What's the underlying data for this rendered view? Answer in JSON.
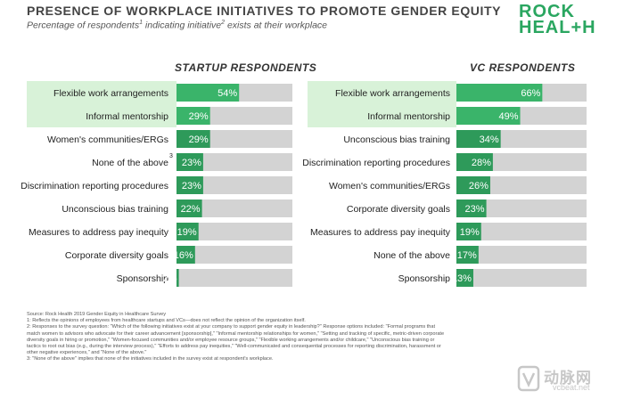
{
  "header": {
    "title": "PRESENCE OF WORKPLACE INITIATIVES TO PROMOTE GENDER EQUITY",
    "subtitle_prefix": "Percentage of respondents",
    "subtitle_sup1": "1",
    "subtitle_middle": " indicating initiative",
    "subtitle_sup2": "2",
    "subtitle_suffix": " exists at their workplace"
  },
  "logo": {
    "line1": "ROCK",
    "line2_start": "HEAL",
    "line2_plus": "+",
    "line2_end": "H"
  },
  "colors": {
    "dark_green": "#2e9a5a",
    "mid_green": "#3ab46a",
    "highlight": "#d8f2d8",
    "track": "#d3d3d3"
  },
  "chart_data": [
    {
      "type": "bar",
      "orientation": "horizontal",
      "title": "STARTUP RESPONDENTS",
      "categories": [
        "Flexible work arrangements",
        "Informal mentorship",
        "Women's communities/ERGs",
        "None of the above",
        "Discrimination reporting procedures",
        "Unconscious bias training",
        "Measures to address pay inequity",
        "Corporate diversity goals",
        "Sponsorship"
      ],
      "category_superscripts": [
        "",
        "",
        "",
        "3",
        "",
        "",
        "",
        "",
        ""
      ],
      "values": [
        54,
        29,
        29,
        23,
        23,
        22,
        19,
        16,
        2
      ],
      "value_labels": [
        "54%",
        "29%",
        "29%",
        "23%",
        "23%",
        "22%",
        "19%",
        "16%",
        "2%"
      ],
      "highlighted": [
        0,
        1
      ],
      "xlim": [
        0,
        100
      ]
    },
    {
      "type": "bar",
      "orientation": "horizontal",
      "title": "VC RESPONDENTS",
      "categories": [
        "Flexible work arrangements",
        "Informal mentorship",
        "Unconscious bias training",
        "Discrimination reporting procedures",
        "Women's communities/ERGs",
        "Corporate diversity goals",
        "Measures to address pay inequity",
        "None of the above",
        "Sponsorship"
      ],
      "category_superscripts": [
        "",
        "",
        "",
        "",
        "",
        "",
        "",
        "",
        ""
      ],
      "values": [
        66,
        49,
        34,
        28,
        26,
        23,
        19,
        17,
        13
      ],
      "value_labels": [
        "66%",
        "49%",
        "34%",
        "28%",
        "26%",
        "23%",
        "19%",
        "17%",
        "13%"
      ],
      "highlighted": [
        0,
        1
      ],
      "xlim": [
        0,
        100
      ]
    }
  ],
  "footnotes": [
    "Source: Rock Health 2019 Gender Equity in Healthcare Survey",
    "1: Reflects the opinions of employees from healthcare startups and VCs—does not reflect the opinion of the organization itself.",
    "2: Responses to the survey question: \"Which of the following initiatives exist at your company to support gender equity in leadership?\" Response options included: \"Formal programs that match women to advisors who advocate for their career advancement [sponsorship],\" \"Informal mentorship relationships for women,\" \"Setting and tracking of specific, metric-driven corporate diversity goals in hiring or promotion,\" \"Women-focused communities and/or employee resource groups,\" \"Flexible working arrangements and/or childcare,\" \"Unconscious bias training or tactics to root out bias (e.g., during the interview process),\" \"Efforts to address pay inequities,\" \"Well-communicated and consequential processes for reporting discrimination, harassment or other negative experiences,\" and \"None of the above.\"",
    "3: \"None of the above\" implies that none of the initiatives included in the survey exist at respondent's workplace."
  ],
  "watermark": {
    "brand": "动脉网",
    "url": "vcbeat.net"
  }
}
